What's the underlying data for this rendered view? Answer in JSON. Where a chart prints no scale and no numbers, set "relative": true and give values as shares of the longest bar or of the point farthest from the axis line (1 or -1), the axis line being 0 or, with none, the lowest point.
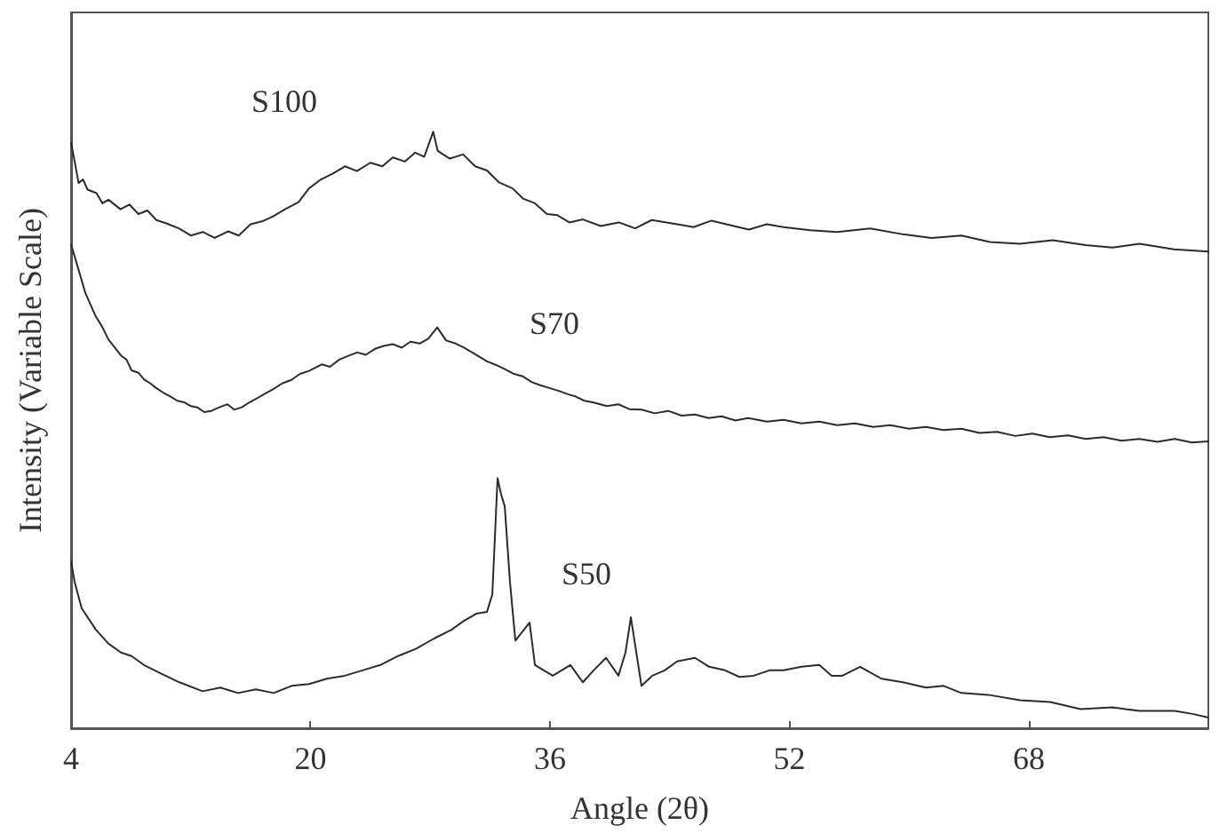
{
  "chart_data": {
    "type": "line",
    "relative": true,
    "xlabel": "Angle (2θ)",
    "ylabel": "Intensity (Variable Scale)",
    "xlim": [
      4,
      80
    ],
    "xticks": [
      4,
      20,
      36,
      52,
      68
    ],
    "marker": "none",
    "series": [
      {
        "name": "S100",
        "color": "#2b2b2b",
        "x": [
          4,
          4.24,
          4.5,
          4.8,
          5.1,
          5.7,
          6.1,
          6.5,
          7.3,
          7.9,
          8.5,
          9.1,
          9.7,
          10.4,
          11.2,
          12.0,
          12.8,
          13.6,
          14.5,
          15.2,
          16.0,
          16.8,
          17.5,
          18.3,
          19.2,
          19.9,
          20.7,
          21.5,
          22.3,
          23.1,
          24.0,
          24.8,
          25.5,
          26.3,
          27.0,
          27.6,
          28.2,
          28.5,
          29.3,
          30.2,
          31.0,
          31.8,
          32.6,
          33.5,
          34.2,
          35.0,
          35.8,
          36.5,
          37.3,
          38.2,
          39.4,
          40.6,
          41.7,
          42.8,
          44.5,
          45.6,
          46.8,
          48.1,
          49.3,
          50.5,
          51.6,
          53.4,
          55.2,
          57.4,
          59.6,
          61.5,
          63.5,
          65.4,
          67.4,
          69.6,
          71.8,
          73.6,
          75.4,
          77.7,
          80
        ],
        "values": [
          0.982,
          0.95,
          0.914,
          0.92,
          0.903,
          0.897,
          0.88,
          0.886,
          0.87,
          0.878,
          0.862,
          0.868,
          0.852,
          0.846,
          0.838,
          0.826,
          0.832,
          0.822,
          0.833,
          0.826,
          0.845,
          0.85,
          0.858,
          0.87,
          0.882,
          0.905,
          0.92,
          0.93,
          0.942,
          0.934,
          0.948,
          0.942,
          0.957,
          0.95,
          0.965,
          0.958,
          1.0,
          0.968,
          0.955,
          0.962,
          0.942,
          0.935,
          0.915,
          0.905,
          0.888,
          0.88,
          0.862,
          0.86,
          0.848,
          0.853,
          0.842,
          0.848,
          0.838,
          0.852,
          0.845,
          0.84,
          0.851,
          0.843,
          0.836,
          0.845,
          0.84,
          0.835,
          0.832,
          0.838,
          0.828,
          0.822,
          0.826,
          0.815,
          0.812,
          0.818,
          0.81,
          0.806,
          0.812,
          0.803,
          0.799
        ]
      },
      {
        "name": "S70",
        "color": "#2b2b2b",
        "x": [
          4,
          4.24,
          4.59,
          4.95,
          5.3,
          5.66,
          6.1,
          6.49,
          7.33,
          7.7,
          8.04,
          8.5,
          8.87,
          9.3,
          9.7,
          10.2,
          10.65,
          11.1,
          11.6,
          12.0,
          12.43,
          12.9,
          13.38,
          13.9,
          14.45,
          14.9,
          15.4,
          15.9,
          16.35,
          16.9,
          17.54,
          18.1,
          18.73,
          19.3,
          19.91,
          20.75,
          21.3,
          21.93,
          22.5,
          23.12,
          23.7,
          24.31,
          24.9,
          25.5,
          26.1,
          26.68,
          27.3,
          27.87,
          28.47,
          29.06,
          29.7,
          30.25,
          31.08,
          31.79,
          32.4,
          32.98,
          33.6,
          34.17,
          34.8,
          35.35,
          36.0,
          36.54,
          37.2,
          37.73,
          38.3,
          38.92,
          39.8,
          40.58,
          41.3,
          42.12,
          43.0,
          43.9,
          44.8,
          45.69,
          46.6,
          47.47,
          48.4,
          49.25,
          50.5,
          51.62,
          52.8,
          54.0,
          55.2,
          56.38,
          57.6,
          58.75,
          60.0,
          61.13,
          62.3,
          63.5,
          64.7,
          65.88,
          67.1,
          68.25,
          69.4,
          70.63,
          71.8,
          73.0,
          74.2,
          75.38,
          76.6,
          77.75,
          78.9,
          80
        ],
        "values": [
          0.811,
          0.791,
          0.761,
          0.73,
          0.71,
          0.69,
          0.672,
          0.652,
          0.625,
          0.618,
          0.6,
          0.596,
          0.585,
          0.578,
          0.57,
          0.562,
          0.556,
          0.549,
          0.546,
          0.54,
          0.538,
          0.53,
          0.532,
          0.538,
          0.543,
          0.534,
          0.538,
          0.546,
          0.552,
          0.56,
          0.569,
          0.578,
          0.584,
          0.594,
          0.599,
          0.61,
          0.606,
          0.618,
          0.624,
          0.63,
          0.626,
          0.636,
          0.641,
          0.644,
          0.638,
          0.648,
          0.645,
          0.653,
          0.672,
          0.65,
          0.645,
          0.638,
          0.626,
          0.615,
          0.609,
          0.602,
          0.594,
          0.59,
          0.58,
          0.575,
          0.57,
          0.566,
          0.56,
          0.556,
          0.549,
          0.546,
          0.54,
          0.543,
          0.535,
          0.534,
          0.528,
          0.532,
          0.524,
          0.526,
          0.52,
          0.523,
          0.516,
          0.52,
          0.514,
          0.517,
          0.511,
          0.514,
          0.508,
          0.511,
          0.505,
          0.508,
          0.502,
          0.505,
          0.5,
          0.502,
          0.495,
          0.497,
          0.49,
          0.494,
          0.488,
          0.491,
          0.485,
          0.488,
          0.482,
          0.485,
          0.48,
          0.485,
          0.479,
          0.481
        ]
      },
      {
        "name": "S50",
        "color": "#2b2b2b",
        "x": [
          4,
          4.24,
          4.71,
          5.66,
          6.49,
          7.33,
          8.04,
          8.87,
          10.06,
          11.24,
          12.79,
          13.98,
          15.16,
          16.35,
          17.54,
          18.73,
          19.91,
          21.1,
          22.29,
          23.48,
          24.67,
          25.85,
          27.04,
          28.23,
          29.42,
          30.25,
          31.08,
          31.79,
          32.15,
          32.5,
          32.74,
          32.98,
          33.33,
          33.69,
          34.17,
          34.64,
          35.0,
          35.59,
          36.19,
          37.37,
          38.2,
          38.92,
          39.75,
          40.58,
          41.05,
          41.41,
          41.77,
          42.12,
          42.84,
          43.67,
          44.5,
          45.69,
          46.64,
          47.71,
          48.66,
          49.61,
          50.67,
          51.62,
          52.81,
          54.0,
          54.83,
          55.54,
          56.73,
          58.16,
          59.58,
          61.13,
          62.31,
          63.5,
          65.28,
          67.42,
          69.44,
          71.46,
          73.6,
          75.38,
          77.75,
          78.94,
          80
        ],
        "values": [
          0.28,
          0.245,
          0.201,
          0.165,
          0.142,
          0.127,
          0.121,
          0.106,
          0.091,
          0.077,
          0.062,
          0.068,
          0.059,
          0.065,
          0.059,
          0.071,
          0.074,
          0.083,
          0.088,
          0.097,
          0.106,
          0.121,
          0.133,
          0.15,
          0.165,
          0.18,
          0.192,
          0.195,
          0.224,
          0.419,
          0.392,
          0.372,
          0.245,
          0.147,
          0.162,
          0.177,
          0.106,
          0.097,
          0.088,
          0.106,
          0.077,
          0.097,
          0.118,
          0.088,
          0.127,
          0.186,
          0.127,
          0.071,
          0.088,
          0.097,
          0.112,
          0.118,
          0.103,
          0.097,
          0.086,
          0.088,
          0.097,
          0.097,
          0.103,
          0.106,
          0.088,
          0.088,
          0.103,
          0.083,
          0.077,
          0.068,
          0.071,
          0.059,
          0.056,
          0.047,
          0.044,
          0.032,
          0.035,
          0.029,
          0.029,
          0.024,
          0.018
        ]
      }
    ]
  }
}
